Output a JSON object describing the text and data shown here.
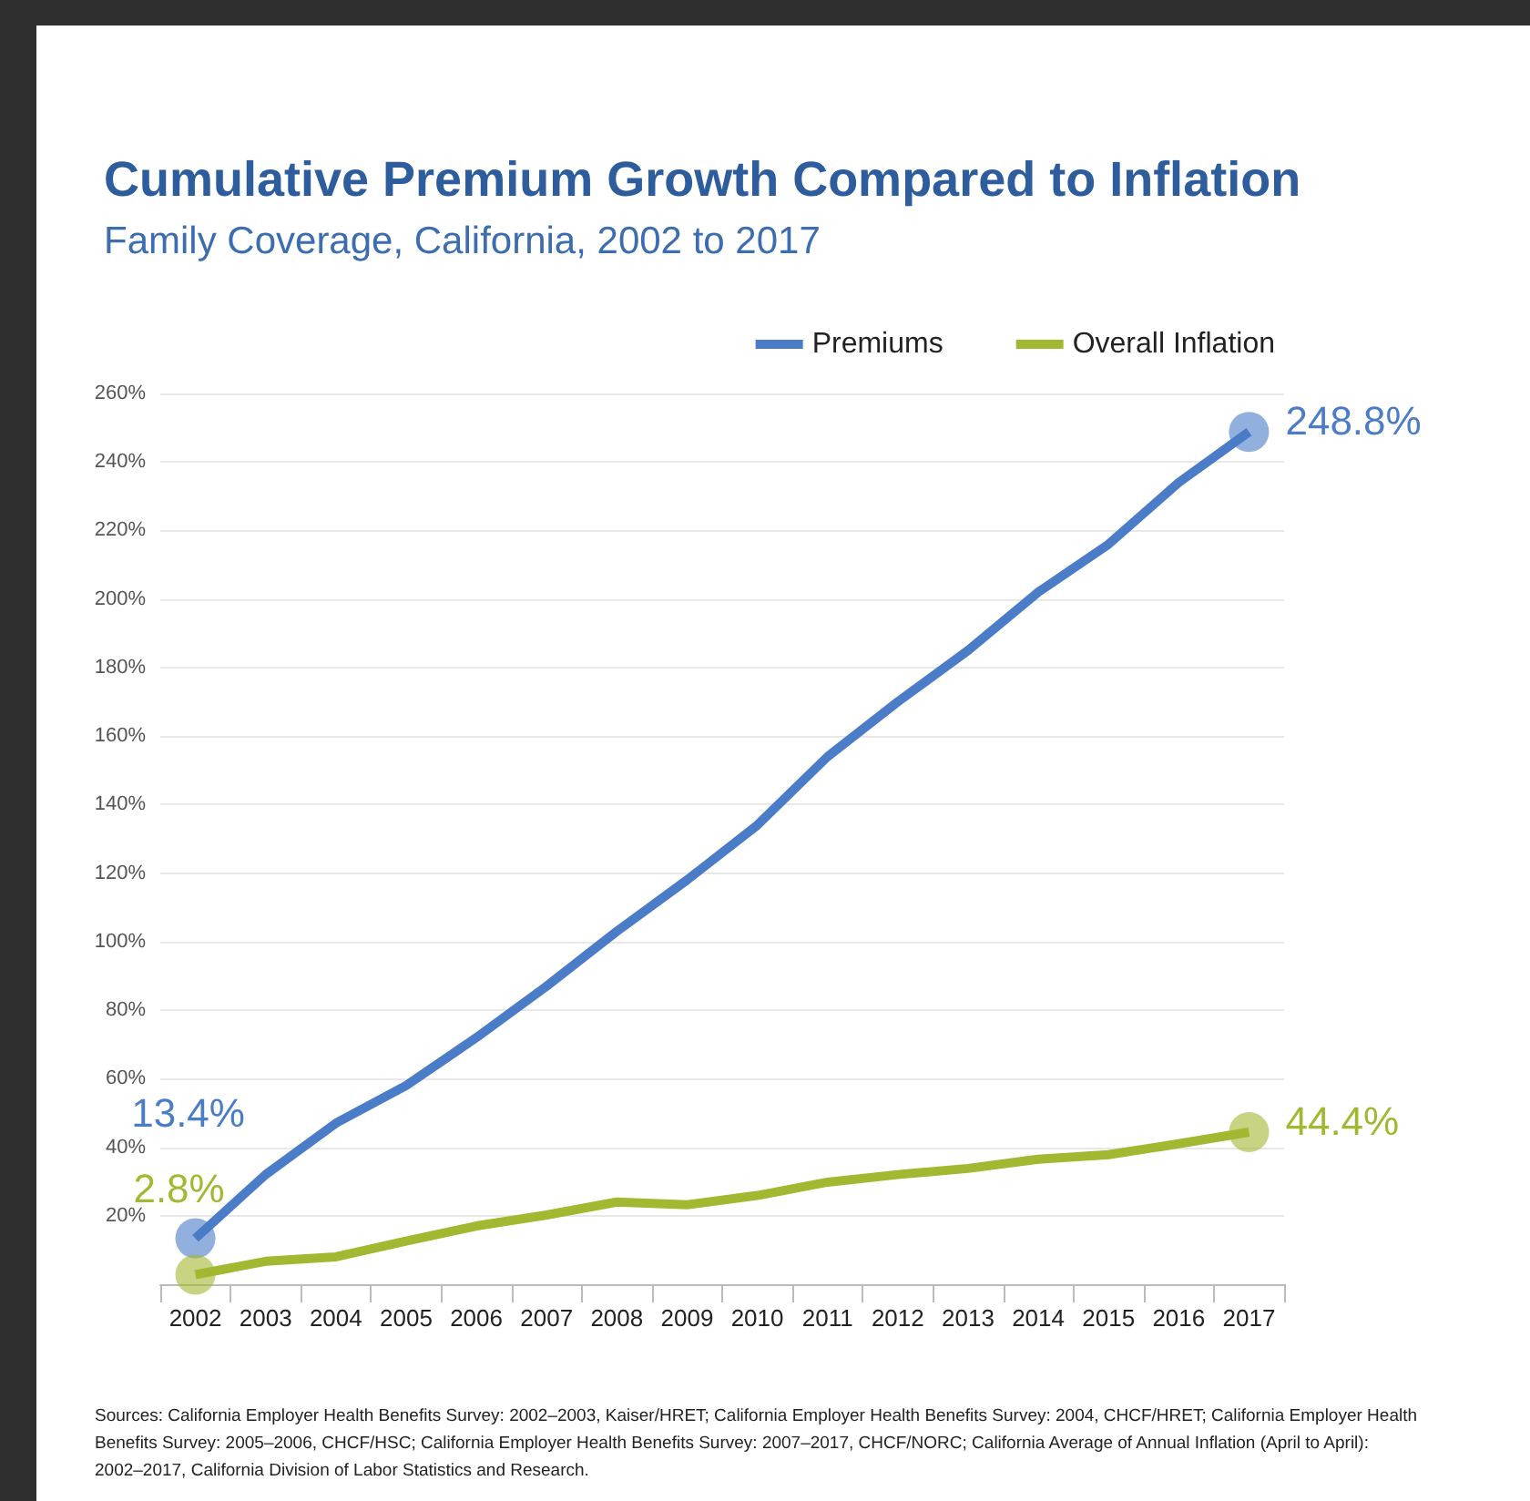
{
  "chart_data": {
    "type": "line",
    "title": "Cumulative Premium Growth Compared to Inflation",
    "subtitle": "Family Coverage, California, 2002 to 2017",
    "categories": [
      "2002",
      "2003",
      "2004",
      "2005",
      "2006",
      "2007",
      "2008",
      "2009",
      "2010",
      "2011",
      "2012",
      "2013",
      "2014",
      "2015",
      "2016",
      "2017"
    ],
    "series": [
      {
        "name": "Premiums",
        "color": "#4a7cc7",
        "values": [
          13.4,
          32,
          47,
          58,
          72,
          87,
          103,
          118,
          134,
          154,
          170,
          185,
          202,
          216,
          234,
          248.8
        ],
        "value_labels": [
          "13.4%",
          null,
          null,
          null,
          null,
          null,
          null,
          null,
          null,
          null,
          null,
          null,
          null,
          null,
          null,
          "248.8%"
        ]
      },
      {
        "name": "Overall Inflation",
        "color": "#a3b831",
        "values": [
          2.8,
          6.7,
          8,
          12.6,
          17,
          20.2,
          24,
          23.2,
          25.9,
          29.8,
          32,
          33.8,
          36.5,
          37.8,
          41,
          44.4
        ],
        "value_labels": [
          "2.8%",
          null,
          null,
          null,
          null,
          null,
          null,
          null,
          null,
          null,
          null,
          null,
          null,
          null,
          null,
          "44.4%"
        ]
      }
    ],
    "ylim": [
      0,
      260
    ],
    "yticks": [
      {
        "value": 0,
        "label": null
      },
      {
        "value": 20,
        "label": "20%"
      },
      {
        "value": 40,
        "label": "40%"
      },
      {
        "value": 60,
        "label": "60%"
      },
      {
        "value": 80,
        "label": "80%"
      },
      {
        "value": 100,
        "label": "100%"
      },
      {
        "value": 120,
        "label": "120%"
      },
      {
        "value": 140,
        "label": "140%"
      },
      {
        "value": 160,
        "label": "160%"
      },
      {
        "value": 180,
        "label": "180%"
      },
      {
        "value": 200,
        "label": "200%"
      },
      {
        "value": 220,
        "label": "220%"
      },
      {
        "value": 240,
        "label": "240%"
      },
      {
        "value": 260,
        "label": "260%"
      }
    ],
    "grid": "y",
    "legend": "top right",
    "line_style": "solid",
    "annotations": [
      "Sources: California Employer Health Benefits Survey: 2002–2003, Kaiser/HRET; California Employer Health Benefits Survey: 2004, CHCF/HRET; California Employer Health Benefits Survey: 2005–2006, CHCF/HSC; California Employer Health Benefits Survey: 2007–2017, CHCF/NORC; California Average of Annual Inflation (April to April): 2002–2017, California Division of Labor Statistics and Research."
    ]
  }
}
